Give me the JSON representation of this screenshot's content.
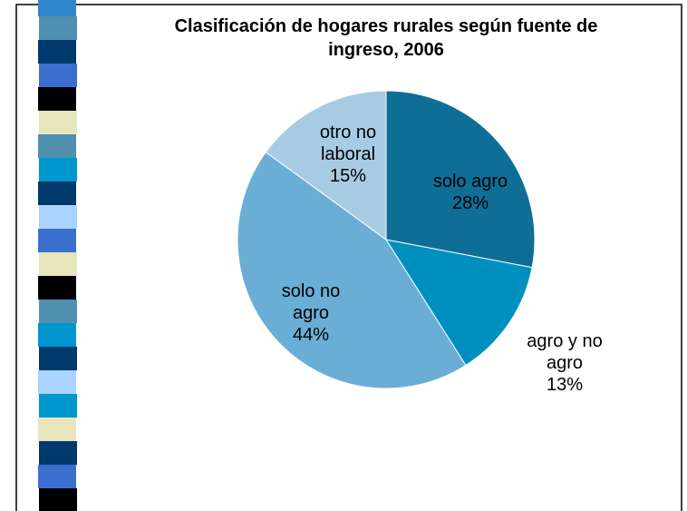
{
  "chart_data": {
    "type": "pie",
    "title": "Clasificación de hogares rurales según fuente de ingreso, 2006",
    "categories": [
      "solo agro",
      "agro y no agro",
      "solo no agro",
      "otro no laboral"
    ],
    "values": [
      28,
      13,
      44,
      15
    ],
    "value_labels": [
      "28%",
      "13%",
      "44%",
      "15%"
    ],
    "colors": [
      "#0e6e96",
      "#0090c0",
      "#6aaed6",
      "#a8cbe4"
    ]
  }
}
